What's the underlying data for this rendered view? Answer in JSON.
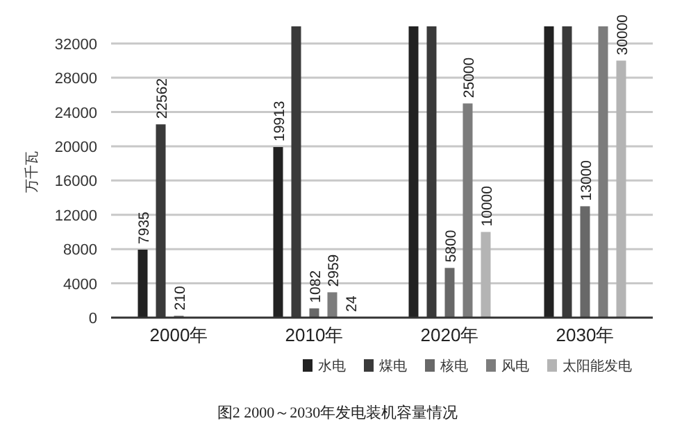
{
  "chart_data": {
    "type": "bar",
    "title": "图2 2000～2030年发电装机容量情况",
    "ylabel": "万千瓦",
    "categories": [
      "2000年",
      "2010年",
      "2020年",
      "2030年"
    ],
    "series": [
      {
        "name": "水电",
        "color": "#222222",
        "values": [
          7935,
          19913,
          34000,
          34000
        ],
        "value_labels": [
          "7935",
          "19913",
          null,
          null
        ]
      },
      {
        "name": "煤电",
        "color": "#3a3a3a",
        "values": [
          22562,
          34000,
          34000,
          34000
        ],
        "value_labels": [
          "22562",
          null,
          null,
          null
        ]
      },
      {
        "name": "核电",
        "color": "#686868",
        "values": [
          210,
          1082,
          5800,
          13000
        ],
        "value_labels": [
          "210",
          "1082",
          "5800",
          "13000"
        ]
      },
      {
        "name": "风电",
        "color": "#7c7c7c",
        "values": [
          null,
          2959,
          25000,
          34000
        ],
        "value_labels": [
          null,
          "2959",
          "25000",
          null
        ]
      },
      {
        "name": "太阳能发电",
        "color": "#b4b4b4",
        "values": [
          null,
          24,
          10000,
          30000
        ],
        "value_labels": [
          null,
          "24",
          "10000",
          "30000"
        ]
      }
    ],
    "ylim": [
      0,
      34000
    ],
    "yticks": [
      0,
      4000,
      8000,
      12000,
      16000,
      20000,
      24000,
      28000,
      32000
    ],
    "grid": "y",
    "legend": "bottom right"
  }
}
